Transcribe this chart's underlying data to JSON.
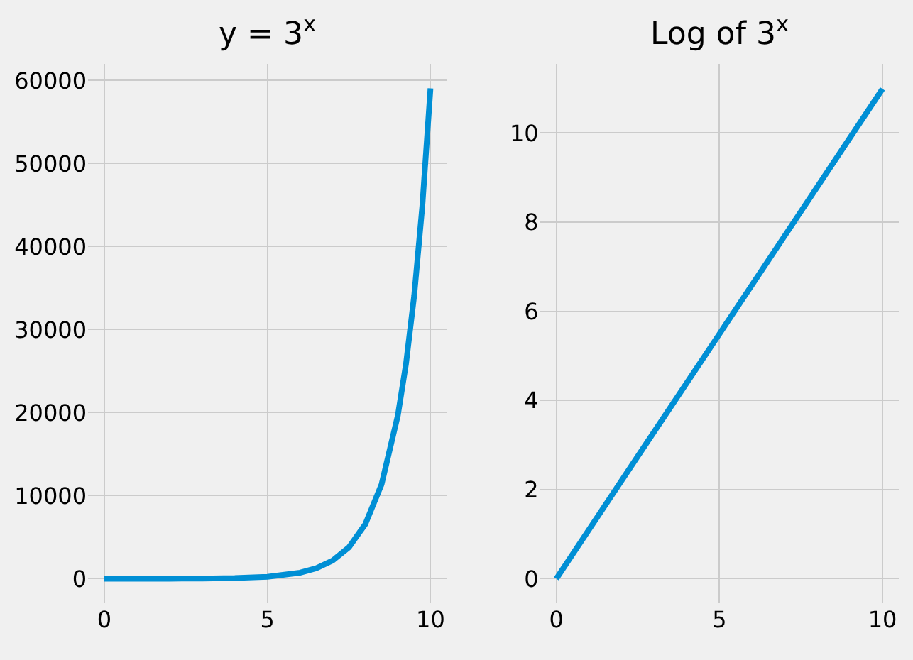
{
  "chart_data": [
    {
      "type": "line",
      "title": "y = 3$^{x}$",
      "x": [
        0,
        1,
        2,
        3,
        4,
        5,
        6,
        6.5,
        7,
        7.5,
        8,
        8.5,
        9,
        9.25,
        9.5,
        9.75,
        10
      ],
      "series": [
        {
          "color": "#008fd5",
          "values": [
            1,
            3,
            9,
            27,
            81,
            243,
            729,
            1263,
            2187,
            3788,
            6561,
            11364,
            19683,
            25900,
            34092,
            44870,
            59049
          ]
        }
      ],
      "xlim": [
        -0.5,
        10.5
      ],
      "xticks": [
        0,
        5,
        10
      ],
      "ylim": [
        -2950,
        62000
      ],
      "yticks": [
        0,
        10000,
        20000,
        30000,
        40000,
        50000,
        60000
      ],
      "grid": true,
      "marker": "none",
      "line_style": "solid"
    },
    {
      "type": "line",
      "title": "Log of 3$^{x}$",
      "x": [
        0,
        2.5,
        5,
        7.5,
        10
      ],
      "series": [
        {
          "color": "#008fd5",
          "values": [
            0,
            2.75,
            5.49,
            8.24,
            10.99
          ]
        }
      ],
      "xlim": [
        -0.5,
        10.5
      ],
      "xticks": [
        0,
        5,
        10
      ],
      "ylim": [
        -0.55,
        11.55
      ],
      "yticks": [
        0,
        2,
        4,
        6,
        8,
        10
      ],
      "grid": true,
      "marker": "none",
      "line_style": "solid"
    }
  ]
}
